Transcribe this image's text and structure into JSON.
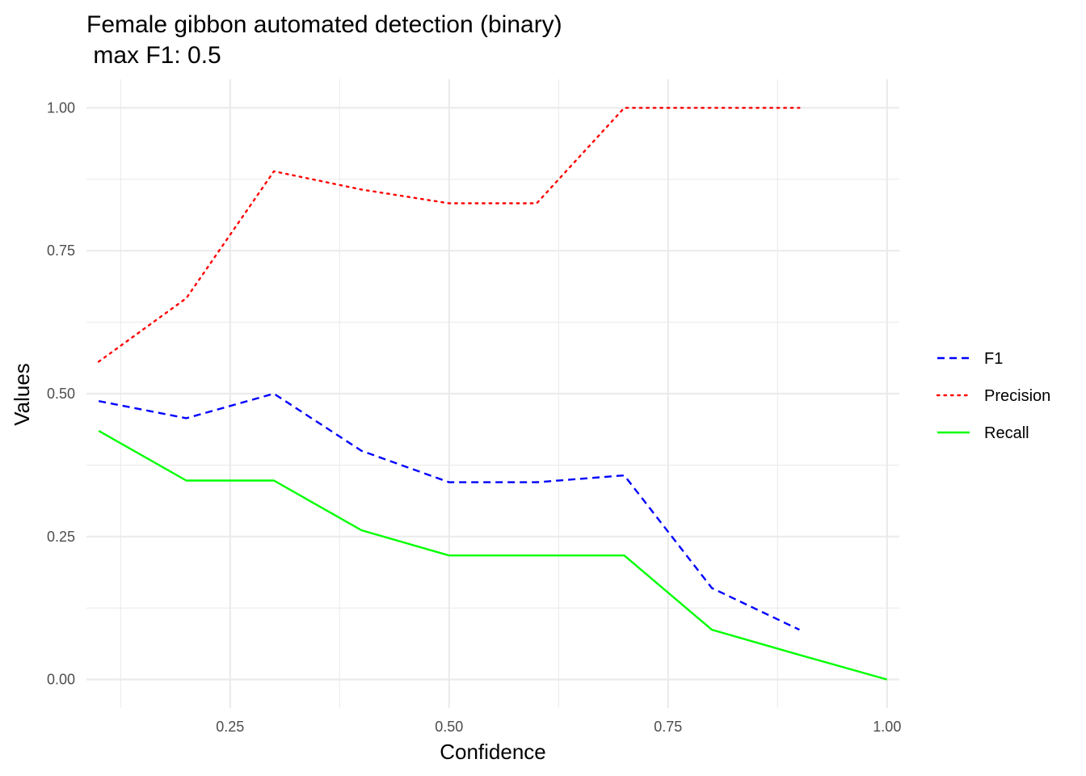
{
  "chart_data": {
    "type": "line",
    "title_line1": "Female gibbon automated detection (binary)",
    "title_line2": " max F1: 0.5",
    "xlabel": "Confidence",
    "ylabel": "Values",
    "xlim": [
      0.086,
      1.014
    ],
    "ylim": [
      -0.05,
      1.05
    ],
    "x_ticks": [
      0.25,
      0.5,
      0.75,
      1.0
    ],
    "x_tick_labels": [
      "0.25",
      "0.50",
      "0.75",
      "1.00"
    ],
    "x_minor": [
      0.125,
      0.375,
      0.625,
      0.875
    ],
    "y_ticks": [
      0.0,
      0.25,
      0.5,
      0.75,
      1.0
    ],
    "y_tick_labels": [
      "0.00",
      "0.25",
      "0.50",
      "0.75",
      "1.00"
    ],
    "y_minor": [
      0.125,
      0.375,
      0.625,
      0.875
    ],
    "grid": true,
    "legend_position": "right",
    "series": [
      {
        "name": "F1",
        "color": "#0000ff",
        "dash": "dashed",
        "x": [
          0.1,
          0.2,
          0.3,
          0.4,
          0.5,
          0.6,
          0.7,
          0.8,
          0.9
        ],
        "y": [
          0.487,
          0.457,
          0.5,
          0.4,
          0.345,
          0.345,
          0.357,
          0.16,
          0.087
        ]
      },
      {
        "name": "Precision",
        "color": "#ff0000",
        "dash": "dotted",
        "x": [
          0.1,
          0.2,
          0.3,
          0.4,
          0.5,
          0.6,
          0.7,
          0.8,
          0.9
        ],
        "y": [
          0.556,
          0.667,
          0.889,
          0.857,
          0.833,
          0.833,
          1.0,
          1.0,
          1.0
        ]
      },
      {
        "name": "Recall",
        "color": "#00ff00",
        "dash": "solid",
        "x": [
          0.1,
          0.2,
          0.3,
          0.4,
          0.5,
          0.6,
          0.7,
          0.8,
          0.9,
          1.0
        ],
        "y": [
          0.435,
          0.348,
          0.348,
          0.261,
          0.217,
          0.217,
          0.217,
          0.087,
          0.043,
          0.0
        ]
      }
    ]
  }
}
